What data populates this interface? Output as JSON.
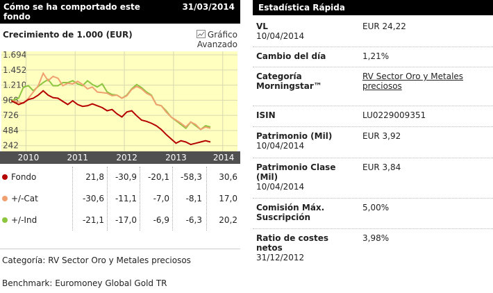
{
  "left": {
    "header_title": "Cómo se ha comportado este fondo",
    "header_date": "31/03/2014",
    "chart_title": "Crecimiento de 1.000 (EUR)",
    "advanced_label_1": "Gráfico",
    "advanced_label_2": "Avanzado",
    "rows": [
      {
        "name": "Fondo",
        "color": "#b50000",
        "values": [
          "21,8",
          "-30,9",
          "-20,1",
          "-58,3",
          "30,6"
        ]
      },
      {
        "name": "+/-Cat",
        "color": "#f0a070",
        "values": [
          "-30,6",
          "-11,1",
          "-7,0",
          "-8,1",
          "17,0"
        ]
      },
      {
        "name": "+/-Ind",
        "color": "#8cc63f",
        "values": [
          "-21,1",
          "-17,0",
          "-6,9",
          "-6,3",
          "20,2"
        ]
      }
    ],
    "category_text": "Categoría: RV Sector Oro y Metales preciosos",
    "benchmark_text": "Benchmark: Euromoney Global Gold TR"
  },
  "right": {
    "header_title": "Estadística Rápida",
    "stats": [
      {
        "label": "VL",
        "sublabel": "10/04/2014",
        "value": "EUR 24,22",
        "link": false
      },
      {
        "label": "Cambio del día",
        "sublabel": "",
        "value": "1,21%",
        "link": false
      },
      {
        "label": "Categoría Morningstar™",
        "sublabel": "",
        "value": "RV Sector Oro y Metales preciosos",
        "link": true
      },
      {
        "label": "ISIN",
        "sublabel": "",
        "value": "LU0229009351",
        "link": false
      },
      {
        "label": "Patrimonio (Mil)",
        "sublabel": "10/04/2014",
        "value": "EUR 3,92",
        "link": false
      },
      {
        "label": "Patrimonio Clase (Mil)",
        "sublabel": "10/04/2014",
        "value": "EUR 3,84",
        "link": false
      },
      {
        "label": "Comisión Máx. Suscripción",
        "sublabel": "",
        "value": "5,00%",
        "link": false
      },
      {
        "label": "Ratio de costes netos",
        "sublabel": "31/12/2012",
        "value": "3,98%",
        "link": false
      }
    ]
  },
  "chart_data": {
    "type": "line",
    "title": "Crecimiento de 1.000 (EUR)",
    "xlabel": "",
    "ylabel": "",
    "y_ticks": [
      "1.694",
      "1.452",
      "1.210",
      "968",
      "726",
      "484",
      "242"
    ],
    "y_tick_values": [
      1694,
      1452,
      1210,
      968,
      726,
      484,
      242
    ],
    "x_ticks": [
      "2010",
      "2011",
      "2012",
      "2013",
      "2014"
    ],
    "ylim": [
      150,
      1750
    ],
    "xlim": [
      2009.5,
      2014.3
    ],
    "grid": true,
    "series": [
      {
        "color": "#8cc63f",
        "x": [
          2009.7,
          2009.85,
          2009.95,
          2010.05,
          2010.15,
          2010.25,
          2010.35,
          2010.45,
          2010.55,
          2010.65,
          2010.75,
          2010.85,
          2010.95,
          2011.05,
          2011.15,
          2011.25,
          2011.35,
          2011.45,
          2011.55,
          2011.65,
          2011.75,
          2011.85,
          2011.95,
          2012.05,
          2012.15,
          2012.25,
          2012.35,
          2012.45,
          2012.55,
          2012.65,
          2012.75,
          2012.85,
          2012.95,
          2013.05,
          2013.15,
          2013.25,
          2013.35,
          2013.45,
          2013.55,
          2013.65,
          2013.75
        ],
        "y": [
          960,
          1000,
          1180,
          1200,
          1120,
          1190,
          1250,
          1300,
          1200,
          1200,
          1250,
          1250,
          1280,
          1230,
          1200,
          1280,
          1220,
          1180,
          1230,
          1100,
          1060,
          1050,
          1000,
          1050,
          1150,
          1220,
          1170,
          1100,
          1050,
          900,
          880,
          800,
          700,
          640,
          580,
          520,
          620,
          560,
          500,
          560,
          540
        ]
      },
      {
        "color": "#f0a070",
        "x": [
          2009.7,
          2009.85,
          2009.95,
          2010.05,
          2010.15,
          2010.25,
          2010.35,
          2010.45,
          2010.55,
          2010.65,
          2010.75,
          2010.85,
          2010.95,
          2011.05,
          2011.15,
          2011.25,
          2011.35,
          2011.45,
          2011.55,
          2011.65,
          2011.75,
          2011.85,
          2011.95,
          2012.05,
          2012.15,
          2012.25,
          2012.35,
          2012.45,
          2012.55,
          2012.65,
          2012.75,
          2012.85,
          2012.95,
          2013.05,
          2013.15,
          2013.25,
          2013.35,
          2013.45,
          2013.55,
          2013.65,
          2013.75
        ],
        "y": [
          960,
          940,
          920,
          1000,
          1100,
          1200,
          1400,
          1280,
          1350,
          1320,
          1200,
          1240,
          1230,
          1270,
          1220,
          1150,
          1180,
          1100,
          1090,
          1080,
          1040,
          1050,
          1000,
          1040,
          1140,
          1190,
          1150,
          1080,
          1040,
          900,
          880,
          780,
          700,
          650,
          600,
          540,
          620,
          580,
          500,
          540,
          520
        ]
      },
      {
        "color": "#b50000",
        "x": [
          2009.7,
          2009.85,
          2009.95,
          2010.05,
          2010.15,
          2010.25,
          2010.35,
          2010.45,
          2010.55,
          2010.65,
          2010.75,
          2010.85,
          2010.95,
          2011.05,
          2011.15,
          2011.25,
          2011.35,
          2011.45,
          2011.55,
          2011.65,
          2011.75,
          2011.85,
          2011.95,
          2012.05,
          2012.15,
          2012.25,
          2012.35,
          2012.45,
          2012.55,
          2012.65,
          2012.75,
          2012.85,
          2012.95,
          2013.05,
          2013.15,
          2013.25,
          2013.35,
          2013.45,
          2013.55,
          2013.65,
          2013.75
        ],
        "y": [
          960,
          900,
          930,
          980,
          1000,
          1050,
          1120,
          1050,
          1010,
          1000,
          950,
          900,
          960,
          900,
          870,
          880,
          910,
          880,
          850,
          800,
          820,
          750,
          700,
          780,
          800,
          720,
          650,
          630,
          600,
          560,
          500,
          420,
          350,
          280,
          320,
          300,
          260,
          280,
          300,
          320,
          300
        ]
      }
    ]
  }
}
